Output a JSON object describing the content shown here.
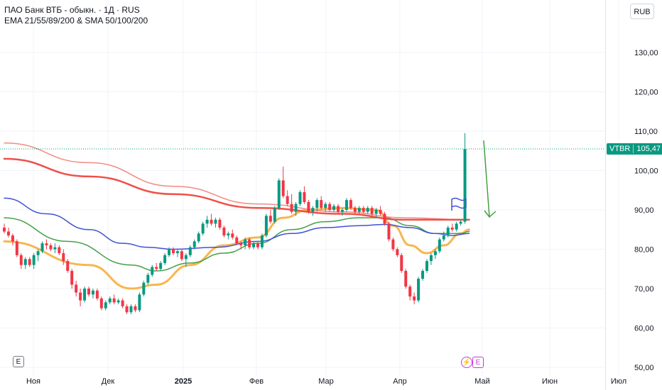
{
  "header": {
    "title": "ПАО Банк ВТБ - обыкн. · 1Д · RUS",
    "indicators": "EMA 21/55/89/200 & SMA 50/100/200"
  },
  "toolbar": {
    "currency": "RUB",
    "e_label": "E"
  },
  "events": {
    "dividend": "⚡",
    "earnings": "E"
  },
  "last_price": {
    "symbol": "VTBR",
    "value": "105,47"
  },
  "colors": {
    "up": "#089981",
    "down": "#f23645",
    "ema21": "#f7b650",
    "ema55": "#43a047",
    "ema89": "#3f51d8",
    "ema200": "#f28b82",
    "sma200": "#f0504a",
    "annotation": "#43a047",
    "flag": "#3f51d8"
  },
  "chart_data": {
    "type": "candlestick",
    "y_axis": {
      "ticks": [
        "130,00",
        "120,00",
        "110,00",
        "100,00",
        "90,00",
        "80,00",
        "70,00",
        "60,00",
        "50,00"
      ],
      "ylim": [
        49,
        140
      ]
    },
    "x_axis": {
      "ticks": [
        "Ноя",
        "Дек",
        "2025",
        "Фев",
        "Мар",
        "Апр",
        "Май",
        "Июн",
        "Июл"
      ]
    },
    "candles": [
      {
        "o": 85.5,
        "h": 86.5,
        "l": 84,
        "c": 84.5
      },
      {
        "o": 84.5,
        "h": 85.5,
        "l": 83,
        "c": 83.5
      },
      {
        "o": 83.5,
        "h": 84,
        "l": 81,
        "c": 82
      },
      {
        "o": 82,
        "h": 82.5,
        "l": 78,
        "c": 78.5
      },
      {
        "o": 78.5,
        "h": 79,
        "l": 75,
        "c": 76
      },
      {
        "o": 76,
        "h": 78,
        "l": 75,
        "c": 77.5
      },
      {
        "o": 77.5,
        "h": 78,
        "l": 75.5,
        "c": 76
      },
      {
        "o": 76,
        "h": 79,
        "l": 75,
        "c": 78.5
      },
      {
        "o": 78.5,
        "h": 80,
        "l": 77,
        "c": 79.5
      },
      {
        "o": 79.5,
        "h": 82,
        "l": 79,
        "c": 81.5
      },
      {
        "o": 81.5,
        "h": 82.5,
        "l": 80,
        "c": 81
      },
      {
        "o": 81,
        "h": 81.5,
        "l": 79.5,
        "c": 80
      },
      {
        "o": 80,
        "h": 81.5,
        "l": 79,
        "c": 80.5
      },
      {
        "o": 80.5,
        "h": 81,
        "l": 78.5,
        "c": 79
      },
      {
        "o": 79,
        "h": 80,
        "l": 76,
        "c": 77
      },
      {
        "o": 77,
        "h": 77.5,
        "l": 74,
        "c": 74.5
      },
      {
        "o": 74.5,
        "h": 75,
        "l": 70,
        "c": 71
      },
      {
        "o": 71,
        "h": 72,
        "l": 68,
        "c": 69
      },
      {
        "o": 69,
        "h": 70,
        "l": 65.5,
        "c": 67
      },
      {
        "o": 67,
        "h": 70.5,
        "l": 66.5,
        "c": 70
      },
      {
        "o": 70,
        "h": 70.5,
        "l": 68,
        "c": 68.5
      },
      {
        "o": 68.5,
        "h": 70,
        "l": 67.5,
        "c": 69.5
      },
      {
        "o": 69.5,
        "h": 70,
        "l": 67,
        "c": 67.5
      },
      {
        "o": 67.5,
        "h": 68,
        "l": 64.5,
        "c": 65
      },
      {
        "o": 65,
        "h": 67,
        "l": 64.5,
        "c": 66.5
      },
      {
        "o": 66.5,
        "h": 68,
        "l": 66,
        "c": 67.5
      },
      {
        "o": 67.5,
        "h": 68.5,
        "l": 66,
        "c": 66.5
      },
      {
        "o": 66.5,
        "h": 67.5,
        "l": 66,
        "c": 67
      },
      {
        "o": 67,
        "h": 67.5,
        "l": 65,
        "c": 65.5
      },
      {
        "o": 65.5,
        "h": 66,
        "l": 63.5,
        "c": 64
      },
      {
        "o": 64,
        "h": 66,
        "l": 63.5,
        "c": 65.5
      },
      {
        "o": 65.5,
        "h": 66,
        "l": 64,
        "c": 64.5
      },
      {
        "o": 64.5,
        "h": 69,
        "l": 64,
        "c": 68.5
      },
      {
        "o": 68.5,
        "h": 72,
        "l": 68,
        "c": 71.5
      },
      {
        "o": 71.5,
        "h": 74,
        "l": 71,
        "c": 73.5
      },
      {
        "o": 73.5,
        "h": 76,
        "l": 73,
        "c": 75.5
      },
      {
        "o": 75.5,
        "h": 76.5,
        "l": 74.5,
        "c": 75
      },
      {
        "o": 75,
        "h": 77,
        "l": 74.5,
        "c": 76.5
      },
      {
        "o": 76.5,
        "h": 79,
        "l": 76,
        "c": 78.5
      },
      {
        "o": 78.5,
        "h": 80.5,
        "l": 78,
        "c": 80
      },
      {
        "o": 80,
        "h": 80.5,
        "l": 78.5,
        "c": 79
      },
      {
        "o": 79,
        "h": 80,
        "l": 78,
        "c": 79.5
      },
      {
        "o": 79.5,
        "h": 80,
        "l": 77,
        "c": 77.5
      },
      {
        "o": 77.5,
        "h": 79,
        "l": 75.5,
        "c": 78.5
      },
      {
        "o": 78.5,
        "h": 81,
        "l": 78,
        "c": 80.5
      },
      {
        "o": 80.5,
        "h": 82.5,
        "l": 80,
        "c": 82
      },
      {
        "o": 82,
        "h": 84.5,
        "l": 81.5,
        "c": 84
      },
      {
        "o": 84,
        "h": 87,
        "l": 83.5,
        "c": 86.5
      },
      {
        "o": 86.5,
        "h": 88.5,
        "l": 85.5,
        "c": 87.5
      },
      {
        "o": 87.5,
        "h": 89,
        "l": 86,
        "c": 86.5
      },
      {
        "o": 86.5,
        "h": 88,
        "l": 85.5,
        "c": 87.5
      },
      {
        "o": 87.5,
        "h": 88,
        "l": 85,
        "c": 85.5
      },
      {
        "o": 85.5,
        "h": 86,
        "l": 83,
        "c": 83.5
      },
      {
        "o": 83.5,
        "h": 84.5,
        "l": 82.5,
        "c": 84
      },
      {
        "o": 84,
        "h": 85,
        "l": 82.5,
        "c": 83
      },
      {
        "o": 83,
        "h": 83.5,
        "l": 81,
        "c": 81.5
      },
      {
        "o": 81.5,
        "h": 82,
        "l": 80,
        "c": 81
      },
      {
        "o": 81,
        "h": 83,
        "l": 80,
        "c": 82.5
      },
      {
        "o": 82.5,
        "h": 83,
        "l": 80,
        "c": 80.5
      },
      {
        "o": 80.5,
        "h": 82,
        "l": 80,
        "c": 81.5
      },
      {
        "o": 81.5,
        "h": 82,
        "l": 80,
        "c": 80.5
      },
      {
        "o": 80.5,
        "h": 84,
        "l": 80,
        "c": 83.5
      },
      {
        "o": 83.5,
        "h": 89,
        "l": 83,
        "c": 88.5
      },
      {
        "o": 88.5,
        "h": 90,
        "l": 86.5,
        "c": 87
      },
      {
        "o": 87,
        "h": 91,
        "l": 86.5,
        "c": 90.5
      },
      {
        "o": 90.5,
        "h": 98,
        "l": 90,
        "c": 97.5
      },
      {
        "o": 97.5,
        "h": 101,
        "l": 93,
        "c": 93.5
      },
      {
        "o": 93.5,
        "h": 95,
        "l": 91,
        "c": 91.5
      },
      {
        "o": 91.5,
        "h": 94,
        "l": 89,
        "c": 89.5
      },
      {
        "o": 89.5,
        "h": 92,
        "l": 88.5,
        "c": 91.5
      },
      {
        "o": 91.5,
        "h": 95,
        "l": 91,
        "c": 94.5
      },
      {
        "o": 94.5,
        "h": 96,
        "l": 91.5,
        "c": 92
      },
      {
        "o": 92,
        "h": 92.5,
        "l": 89,
        "c": 89.5
      },
      {
        "o": 89.5,
        "h": 91,
        "l": 88.5,
        "c": 90.5
      },
      {
        "o": 90.5,
        "h": 93,
        "l": 89.5,
        "c": 92.5
      },
      {
        "o": 92.5,
        "h": 93.5,
        "l": 90,
        "c": 90.5
      },
      {
        "o": 90.5,
        "h": 92,
        "l": 89.5,
        "c": 91.5
      },
      {
        "o": 91.5,
        "h": 92,
        "l": 89.5,
        "c": 90
      },
      {
        "o": 90,
        "h": 91.5,
        "l": 89.5,
        "c": 91
      },
      {
        "o": 91,
        "h": 91.5,
        "l": 89,
        "c": 89.5
      },
      {
        "o": 89.5,
        "h": 90.5,
        "l": 88.5,
        "c": 90
      },
      {
        "o": 90,
        "h": 93,
        "l": 89.5,
        "c": 92.5
      },
      {
        "o": 92.5,
        "h": 93,
        "l": 90,
        "c": 90.5
      },
      {
        "o": 90.5,
        "h": 91,
        "l": 89,
        "c": 89.5
      },
      {
        "o": 89.5,
        "h": 91,
        "l": 89,
        "c": 90.5
      },
      {
        "o": 90.5,
        "h": 91,
        "l": 89,
        "c": 89.5
      },
      {
        "o": 89.5,
        "h": 91,
        "l": 89,
        "c": 90.5
      },
      {
        "o": 90.5,
        "h": 91,
        "l": 88.5,
        "c": 89
      },
      {
        "o": 89,
        "h": 90.5,
        "l": 88,
        "c": 90
      },
      {
        "o": 90,
        "h": 91,
        "l": 88.5,
        "c": 89
      },
      {
        "o": 89,
        "h": 89.5,
        "l": 86,
        "c": 86.5
      },
      {
        "o": 86.5,
        "h": 87,
        "l": 82,
        "c": 82.5
      },
      {
        "o": 82.5,
        "h": 83,
        "l": 79.5,
        "c": 80
      },
      {
        "o": 80,
        "h": 80.5,
        "l": 78,
        "c": 78.5
      },
      {
        "o": 78.5,
        "h": 79,
        "l": 74,
        "c": 74.5
      },
      {
        "o": 74.5,
        "h": 75,
        "l": 70,
        "c": 70.5
      },
      {
        "o": 70.5,
        "h": 71,
        "l": 67,
        "c": 68
      },
      {
        "o": 68,
        "h": 69,
        "l": 66,
        "c": 67
      },
      {
        "o": 67,
        "h": 73,
        "l": 66.5,
        "c": 72.5
      },
      {
        "o": 72.5,
        "h": 75,
        "l": 72,
        "c": 74.5
      },
      {
        "o": 74.5,
        "h": 77.5,
        "l": 74,
        "c": 77
      },
      {
        "o": 77,
        "h": 79,
        "l": 76,
        "c": 78.5
      },
      {
        "o": 78.5,
        "h": 80,
        "l": 77.5,
        "c": 79.5
      },
      {
        "o": 79.5,
        "h": 83,
        "l": 79,
        "c": 82.5
      },
      {
        "o": 82.5,
        "h": 84.5,
        "l": 82,
        "c": 83.5
      },
      {
        "o": 83.5,
        "h": 86,
        "l": 83,
        "c": 85.5
      },
      {
        "o": 85.5,
        "h": 86.5,
        "l": 84.5,
        "c": 85
      },
      {
        "o": 85,
        "h": 87,
        "l": 84.5,
        "c": 86.5
      },
      {
        "o": 86.5,
        "h": 87.5,
        "l": 86,
        "c": 87
      },
      {
        "o": 87,
        "h": 109.5,
        "l": 86.5,
        "c": 105.47
      }
    ],
    "series": [
      {
        "key": "ema21",
        "values": [
          [
            0,
            82
          ],
          [
            20,
            76
          ],
          [
            30,
            70
          ],
          [
            36,
            71
          ],
          [
            44,
            76
          ],
          [
            52,
            81
          ],
          [
            60,
            83
          ],
          [
            66,
            88
          ],
          [
            72,
            90
          ],
          [
            80,
            90.5
          ],
          [
            88,
            90
          ],
          [
            92,
            86
          ],
          [
            96,
            81
          ],
          [
            100,
            79
          ],
          [
            104,
            81
          ],
          [
            108,
            84
          ],
          [
            110,
            85
          ]
        ]
      },
      {
        "key": "ema55",
        "values": [
          [
            0,
            88
          ],
          [
            15,
            82
          ],
          [
            30,
            76
          ],
          [
            36,
            74.5
          ],
          [
            44,
            76.5
          ],
          [
            52,
            79
          ],
          [
            60,
            81.5
          ],
          [
            68,
            85
          ],
          [
            76,
            87
          ],
          [
            84,
            88
          ],
          [
            90,
            88
          ],
          [
            96,
            86
          ],
          [
            102,
            84
          ],
          [
            108,
            84
          ],
          [
            110,
            84.5
          ]
        ]
      },
      {
        "key": "ema89",
        "values": [
          [
            0,
            93
          ],
          [
            10,
            89
          ],
          [
            20,
            85
          ],
          [
            28,
            81.5
          ],
          [
            34,
            80.5
          ],
          [
            40,
            80
          ],
          [
            50,
            80.5
          ],
          [
            60,
            82
          ],
          [
            68,
            84
          ],
          [
            76,
            85.5
          ],
          [
            84,
            86
          ],
          [
            90,
            86.3
          ],
          [
            96,
            85.5
          ],
          [
            102,
            84
          ],
          [
            106,
            83.5
          ],
          [
            110,
            84
          ]
        ]
      },
      {
        "key": "ema200",
        "values": [
          [
            0,
            107
          ],
          [
            20,
            102
          ],
          [
            40,
            96
          ],
          [
            60,
            91.5
          ],
          [
            80,
            89.5
          ],
          [
            95,
            88
          ],
          [
            110,
            87.5
          ]
        ]
      },
      {
        "key": "sma200",
        "values": [
          [
            0,
            103
          ],
          [
            20,
            98.5
          ],
          [
            40,
            94
          ],
          [
            60,
            90.5
          ],
          [
            80,
            89
          ],
          [
            95,
            87.5
          ],
          [
            110,
            87.5
          ]
        ]
      }
    ]
  }
}
